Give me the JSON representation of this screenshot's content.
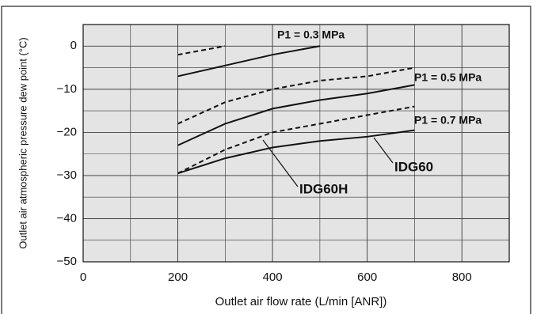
{
  "chart_data": {
    "type": "line",
    "x_label": "Outlet air flow rate (L/min [ANR])",
    "y_label": "Outlet air atmospheric pressure dew point (°C)",
    "xlim": [
      0,
      900
    ],
    "ylim": [
      -50,
      5
    ],
    "xticks": [
      0,
      200,
      400,
      600,
      800
    ],
    "yticks": [
      0,
      {
        "value": -10,
        "label": "−10"
      },
      {
        "value": -20,
        "label": "−20"
      },
      {
        "value": -30,
        "label": "−30"
      },
      {
        "value": -40,
        "label": "−40"
      },
      {
        "value": -50,
        "label": "−50"
      }
    ],
    "grid": true,
    "minor_grid": {
      "x": 100,
      "y": 5
    },
    "series": [
      {
        "color": "#111111",
        "dash": false,
        "x": [
          200,
          300,
          400,
          500
        ],
        "values": [
          -7,
          -4.5,
          -2,
          0
        ]
      },
      {
        "color": "#111111",
        "dash": true,
        "x": [
          200,
          300
        ],
        "values": [
          -2,
          0
        ]
      },
      {
        "color": "#111111",
        "dash": false,
        "x": [
          200,
          300,
          400,
          500,
          600,
          700
        ],
        "values": [
          -23,
          -18,
          -14.5,
          -12.5,
          -11,
          -9
        ]
      },
      {
        "color": "#111111",
        "dash": true,
        "x": [
          200,
          300,
          400,
          500,
          600,
          700
        ],
        "values": [
          -18,
          -13,
          -10,
          -8,
          -7,
          -5
        ]
      },
      {
        "color": "#111111",
        "dash": false,
        "x": [
          200,
          300,
          400,
          500,
          600,
          700
        ],
        "values": [
          -29.5,
          -26,
          -23.5,
          -22,
          -21,
          -19.5
        ]
      },
      {
        "color": "#111111",
        "dash": true,
        "x": [
          200,
          300,
          400,
          500,
          600,
          700
        ],
        "values": [
          -29.5,
          -24,
          -20,
          -18,
          -16,
          -14
        ]
      }
    ],
    "annotations": [
      "P1 = 0.3 MPa",
      "P1 = 0.5 MPa",
      "P1 = 0.7 MPa",
      "IDG60",
      "IDG60H"
    ]
  }
}
